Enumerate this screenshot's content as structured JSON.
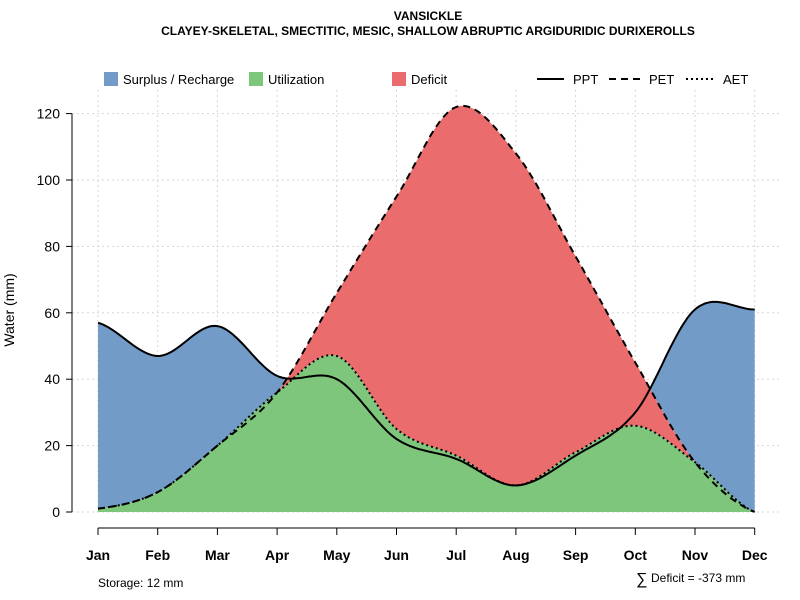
{
  "chart_data": {
    "type": "area",
    "title": "VANSICKLE",
    "subtitle": "CLAYEY-SKELETAL, SMECTITIC, MESIC, SHALLOW ABRUPTIC ARGIDURIDIC DURIXEROLLS",
    "xlabel": "",
    "ylabel": "Water (mm)",
    "ylim": [
      0,
      127
    ],
    "yticks": [
      0,
      20,
      40,
      60,
      80,
      100,
      120
    ],
    "grid": true,
    "categories": [
      "Jan",
      "Feb",
      "Mar",
      "Apr",
      "May",
      "Jun",
      "Jul",
      "Aug",
      "Sep",
      "Oct",
      "Nov",
      "Dec"
    ],
    "series": [
      {
        "name": "PPT",
        "linestyle": "solid",
        "values": [
          57,
          47,
          56,
          41,
          40,
          22,
          16,
          8,
          17,
          30,
          61,
          61
        ]
      },
      {
        "name": "PET",
        "linestyle": "dashed",
        "values": [
          1,
          6,
          20,
          36,
          66,
          95,
          122,
          108,
          77,
          45,
          15,
          0
        ]
      },
      {
        "name": "AET",
        "linestyle": "dotted",
        "values": [
          1,
          6,
          20,
          36,
          47,
          25,
          17,
          8,
          18,
          26,
          15,
          0
        ]
      }
    ],
    "legend": {
      "areas": [
        {
          "label": "Surplus / Recharge",
          "color": "#729bc8"
        },
        {
          "label": "Utilization",
          "color": "#7dc67b"
        },
        {
          "label": "Deficit",
          "color": "#eb6c6d"
        }
      ],
      "lines": [
        {
          "label": "PPT",
          "style": "solid"
        },
        {
          "label": "PET",
          "style": "dashed"
        },
        {
          "label": "AET",
          "style": "dotted"
        }
      ]
    },
    "annotations": {
      "storage": "Storage: 12 mm",
      "deficit_symbol": "∑",
      "deficit": "Deficit = -373 mm"
    }
  }
}
